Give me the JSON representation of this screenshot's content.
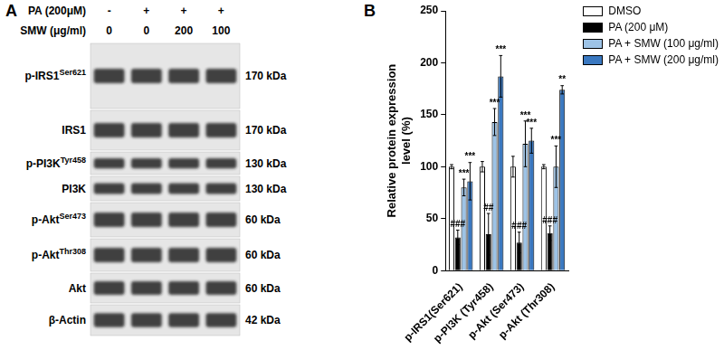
{
  "panel_labels": [
    "A",
    "B"
  ],
  "panel_a": {
    "treatments": [
      {
        "label": "PA (200μM)",
        "lanes": [
          "-",
          "+",
          "+",
          "+"
        ]
      },
      {
        "label": "SMW (μg/ml)",
        "lanes": [
          "0",
          "0",
          "200",
          "100"
        ]
      }
    ],
    "blots": [
      {
        "protein": "p-IRS1",
        "site": "Ser621",
        "size": "170 kDa"
      },
      {
        "protein": "IRS1",
        "size": "170 kDa"
      },
      {
        "protein": "p-PI3K",
        "site": "Tyr458",
        "size": "130 kDa"
      },
      {
        "protein": "PI3K",
        "size": "130 kDa"
      },
      {
        "protein": "p-Akt",
        "site": "Ser473",
        "size": "60 kDa"
      },
      {
        "protein": "p-Akt",
        "site": "Thr308",
        "size": "60 kDa"
      },
      {
        "protein": "Akt",
        "size": "60 kDa"
      },
      {
        "protein": "β-Actin",
        "size": "42 kDa"
      }
    ]
  },
  "chart_data": {
    "type": "bar",
    "y_label": [
      "Relative protein expression",
      "level (%)"
    ],
    "categories": [
      "p-IRS1(Ser621)",
      "p-PI3K (Tyr458)",
      "p-Akt (Ser473)",
      "p-Akt (Thr308)"
    ],
    "series": [
      {
        "name": "DMSO",
        "color": "#ffffff",
        "values": [
          100,
          100,
          100,
          100
        ],
        "errors": [
          2,
          5,
          10,
          2
        ]
      },
      {
        "name": "PA (200 μM)",
        "color": "#000000",
        "values": [
          32,
          35,
          27,
          36
        ],
        "errors": [
          7,
          20,
          10,
          7
        ],
        "significance": [
          "###",
          "##",
          "###",
          "###"
        ]
      },
      {
        "name": "PA + SMW (100 μg/ml)",
        "color": "#9dc3e6",
        "values": [
          80,
          143,
          122,
          100
        ],
        "errors": [
          8,
          13,
          22,
          20
        ],
        "significance": [
          "***",
          "***",
          "***",
          "***"
        ]
      },
      {
        "name": "PA + SMW (200 μg/ml)",
        "color": "#3a78c0",
        "values": [
          86,
          187,
          125,
          174
        ],
        "errors": [
          18,
          20,
          12,
          4
        ],
        "significance": [
          "***",
          "***",
          "***",
          "**"
        ]
      }
    ],
    "ylim": [
      0,
      250
    ],
    "yticks": [
      0,
      50,
      100,
      150,
      200,
      250
    ],
    "grid": false,
    "legend": "upper right"
  }
}
